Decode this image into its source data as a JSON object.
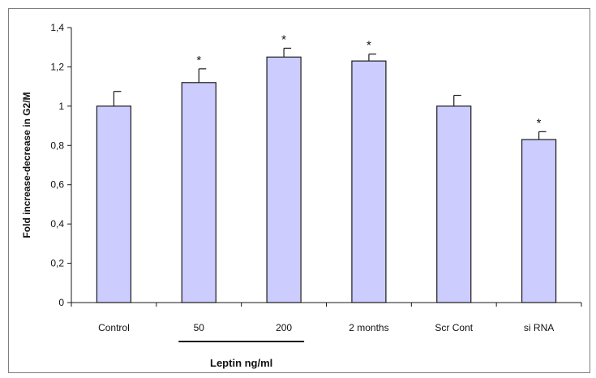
{
  "chart_data": {
    "type": "bar",
    "categories": [
      "Control",
      "50",
      "200",
      "2 months",
      "Scr Cont",
      "si RNA"
    ],
    "values": [
      1.0,
      1.12,
      1.25,
      1.23,
      1.0,
      0.83
    ],
    "errors": [
      0.075,
      0.07,
      0.045,
      0.035,
      0.055,
      0.04
    ],
    "significance": [
      "",
      "*",
      "*",
      "*",
      "",
      "*"
    ],
    "ylabel": "Fold increase-decrease in G2/M",
    "yticks": [
      "0",
      "0,2",
      "0,4",
      "0,6",
      "0,8",
      "1",
      "1,2",
      "1,4"
    ],
    "ylim": [
      0,
      1.4
    ],
    "group_label": "Leptin ng/ml",
    "grid": false,
    "legend": "none",
    "colors": {
      "bar_fill": "#ccccff",
      "bar_stroke": "#1a1a1a",
      "axis": "#1a1a1a"
    }
  }
}
